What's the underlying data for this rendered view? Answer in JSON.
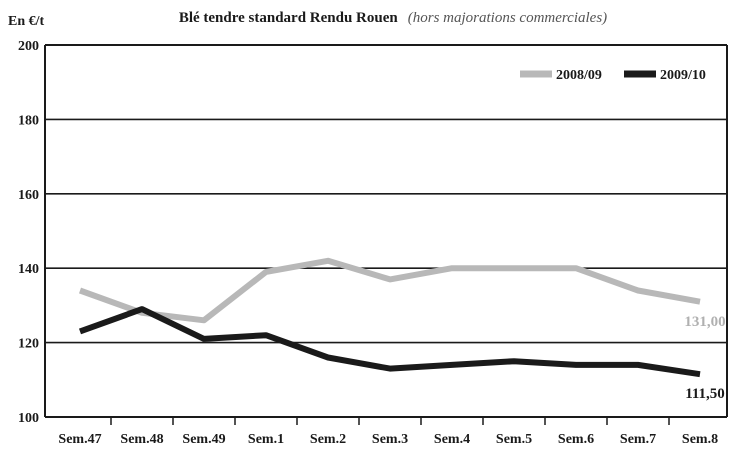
{
  "chart_data": {
    "type": "line",
    "title": "Blé tendre standard Rendu Rouen",
    "subtitle": "(hors majorations commerciales)",
    "ylabel": "En €/t",
    "categories": [
      "Sem.47",
      "Sem.48",
      "Sem.49",
      "Sem.1",
      "Sem.2",
      "Sem.3",
      "Sem.4",
      "Sem.5",
      "Sem.6",
      "Sem.7",
      "Sem.8"
    ],
    "ylim": [
      100,
      200
    ],
    "yticks": [
      100,
      120,
      140,
      160,
      180,
      200
    ],
    "grid": true,
    "legend_position": "top-right",
    "series": [
      {
        "name": "2008/09",
        "color": "#b8b8b8",
        "values": [
          134,
          128,
          126,
          139,
          142,
          137,
          140,
          140,
          140,
          134,
          131
        ],
        "end_label": "131,00"
      },
      {
        "name": "2009/10",
        "color": "#1a1a1a",
        "values": [
          123,
          129,
          121,
          122,
          116,
          113,
          114,
          115,
          114,
          114,
          111.5
        ],
        "end_label": "111,50"
      }
    ]
  }
}
